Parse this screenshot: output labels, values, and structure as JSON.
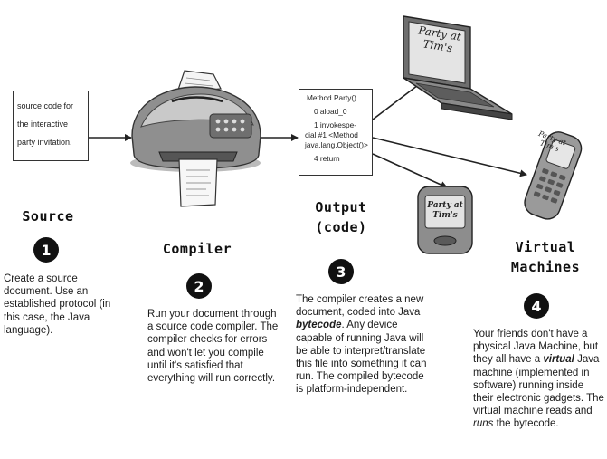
{
  "source_doc": {
    "lines": [
      "source code for",
      "the interactive",
      "party invitation."
    ]
  },
  "bytecode_doc": {
    "lines": [
      "Method Party()",
      "0 aload_0",
      "1 invokespe-",
      "cial #1 <Method",
      "java.lang.Object()>",
      "4 return"
    ]
  },
  "screens": {
    "laptop": [
      "Party at",
      "Tim's"
    ],
    "phone": [
      "Party at",
      "Tim's"
    ],
    "pda": [
      "Party at",
      "Tim's"
    ]
  },
  "steps": [
    {
      "heading": [
        "Source"
      ],
      "number": "1",
      "description": "Create a source document. Use an established protocol (in this case, the Java language)."
    },
    {
      "heading": [
        "Compiler"
      ],
      "number": "2",
      "description": "Run your document through a source code compiler. The compiler checks for errors and won't let you compile until it's satisfied that everything will run correctly."
    },
    {
      "heading": [
        "Output",
        "(code)"
      ],
      "number": "3",
      "description_parts": [
        "The compiler creates a new document, coded into Java ",
        "bytecode",
        ". Any device capable of running Java will be able to interpret/translate this file into something it can run. The compiled bytecode is platform-independent."
      ]
    },
    {
      "heading": [
        "Virtual",
        "Machines"
      ],
      "number": "4",
      "description_parts": [
        "Your friends don't have a physical Java Machine, but they all have a ",
        "virtual",
        " Java machine (implemented in software) running inside their electronic gadgets. The virtual machine reads and ",
        "runs",
        " the bytecode."
      ]
    }
  ]
}
